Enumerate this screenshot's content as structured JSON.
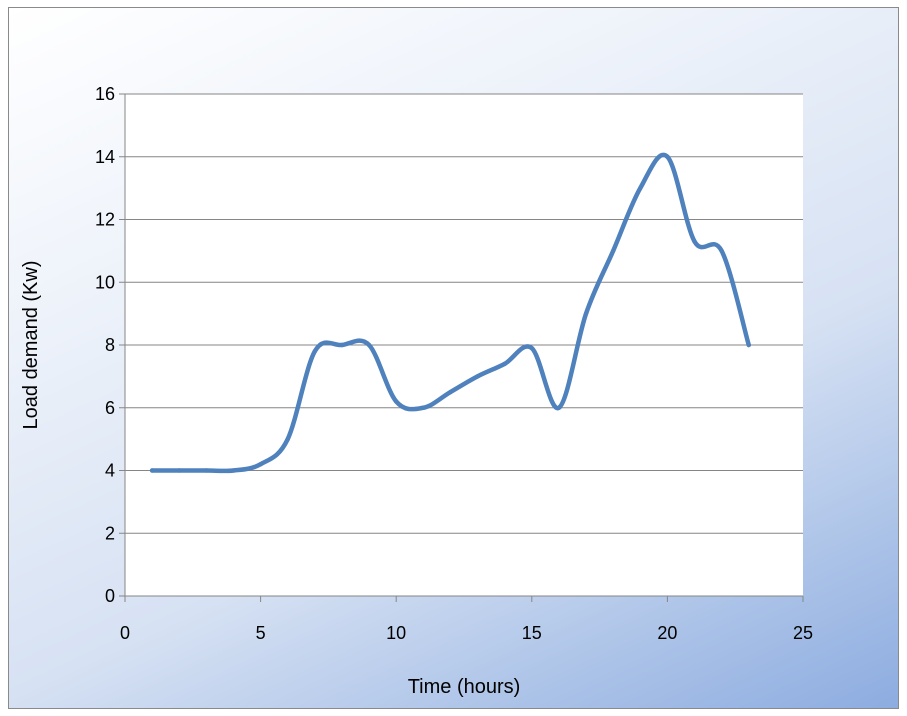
{
  "chart_data": {
    "type": "line",
    "title": "",
    "xlabel": "Time (hours)",
    "ylabel": "Load demand (Kw)",
    "xlim": [
      0,
      25
    ],
    "ylim": [
      0,
      16
    ],
    "x_ticks": [
      0,
      5,
      10,
      15,
      20,
      25
    ],
    "y_ticks": [
      0,
      2,
      4,
      6,
      8,
      10,
      12,
      14,
      16
    ],
    "grid": "horizontal",
    "legend": "none",
    "smooth": true,
    "series": [
      {
        "color": "#4f81bd",
        "x": [
          1,
          2,
          3,
          4,
          5,
          6,
          7,
          8,
          9,
          10,
          11,
          12,
          13,
          14,
          15,
          16,
          17,
          18,
          19,
          20,
          21,
          22,
          23
        ],
        "y": [
          4,
          4,
          4,
          4,
          4.2,
          5,
          7.8,
          8,
          8,
          6.2,
          6,
          6.5,
          7,
          7.4,
          7.9,
          6,
          9,
          11,
          13,
          14,
          11.3,
          11,
          8
        ]
      }
    ]
  }
}
